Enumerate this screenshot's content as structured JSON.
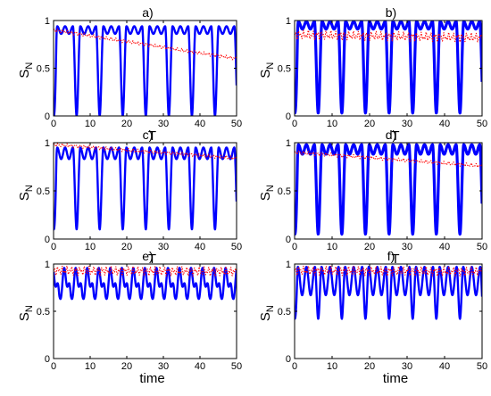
{
  "chart_data": [
    {
      "panel": "a)",
      "type": "line",
      "ylabel": "S_N",
      "xlabel": "T",
      "xlim": [
        0,
        50
      ],
      "ylim": [
        0,
        1
      ],
      "xticks": [
        0,
        10,
        20,
        30,
        40,
        50
      ],
      "yticks": [
        0,
        0.5,
        1
      ],
      "yticklabels": [
        "0",
        "0.5",
        "1"
      ],
      "series": [
        {
          "color": "#0000ff",
          "style": "solid",
          "shape": "single-dip",
          "period": 6.3,
          "max": 0.94,
          "min": 0.0,
          "notch": 0.08
        },
        {
          "color": "#ff0000",
          "style": "dotted",
          "shape": "slow-decay",
          "start": 0.9,
          "end": 0.6
        }
      ]
    },
    {
      "panel": "b)",
      "type": "line",
      "ylabel": "S_N",
      "xlabel": "T",
      "xlim": [
        0,
        50
      ],
      "ylim": [
        0,
        1
      ],
      "xticks": [
        0,
        10,
        20,
        30,
        40,
        50
      ],
      "yticks": [
        0,
        0.5,
        1
      ],
      "yticklabels": [
        "0",
        "0.5",
        "1"
      ],
      "series": [
        {
          "color": "#0000ff",
          "style": "solid",
          "shape": "thick-dip",
          "period": 6.3,
          "max": 0.99,
          "min": 0.03,
          "notch": 0.08
        },
        {
          "color": "#ff0000",
          "style": "dotted",
          "shape": "band",
          "start": 0.85,
          "end": 0.82
        }
      ]
    },
    {
      "panel": "c)",
      "type": "line",
      "ylabel": "S_N",
      "xlabel": "T",
      "xlim": [
        0,
        50
      ],
      "ylim": [
        0,
        1
      ],
      "xticks": [
        0,
        10,
        20,
        30,
        40,
        50
      ],
      "yticks": [
        0,
        0.5,
        1
      ],
      "yticklabels": [
        "0",
        "0.5",
        "1"
      ],
      "series": [
        {
          "color": "#0000ff",
          "style": "solid",
          "shape": "single-dip",
          "period": 6.3,
          "max": 0.95,
          "min": 0.1,
          "notch": 0.12
        },
        {
          "color": "#ff0000",
          "style": "dotted",
          "shape": "slow-decay",
          "start": 0.98,
          "end": 0.84
        }
      ]
    },
    {
      "panel": "d)",
      "type": "line",
      "ylabel": "S_N",
      "xlabel": "T",
      "xlim": [
        0,
        50
      ],
      "ylim": [
        0,
        1
      ],
      "xticks": [
        0,
        10,
        20,
        30,
        40,
        50
      ],
      "yticks": [
        0,
        0.5,
        1
      ],
      "yticklabels": [
        "0",
        "0.5",
        "1"
      ],
      "series": [
        {
          "color": "#0000ff",
          "style": "solid",
          "shape": "thick-dip",
          "period": 6.3,
          "max": 0.98,
          "min": 0.05,
          "notch": 0.1
        },
        {
          "color": "#ff0000",
          "style": "dotted",
          "shape": "slow-decay",
          "start": 0.9,
          "end": 0.76
        }
      ]
    },
    {
      "panel": "e)",
      "type": "line",
      "ylabel": "S_N",
      "xlabel": "time",
      "xlim": [
        0,
        50
      ],
      "ylim": [
        0,
        1
      ],
      "xticks": [
        0,
        10,
        20,
        30,
        40,
        50
      ],
      "yticks": [
        0,
        0.5,
        1
      ],
      "yticklabels": [
        "0",
        "0.5",
        "1"
      ],
      "series": [
        {
          "color": "#0000ff",
          "style": "solid",
          "shape": "fast-osc",
          "period": 3.15,
          "max": 0.97,
          "min": 0.55
        },
        {
          "color": "#ff0000",
          "style": "dotted",
          "shape": "band",
          "start": 0.93,
          "end": 0.92
        }
      ]
    },
    {
      "panel": "f)",
      "type": "line",
      "ylabel": "S_N",
      "xlabel": "time",
      "xlim": [
        0,
        50
      ],
      "ylim": [
        0,
        1
      ],
      "xticks": [
        0,
        10,
        20,
        30,
        40,
        50
      ],
      "yticks": [
        0,
        0.5,
        1
      ],
      "yticklabels": [
        "0",
        "0.5",
        "1"
      ],
      "series": [
        {
          "color": "#0000ff",
          "style": "solid",
          "shape": "dip-osc",
          "period": 6.3,
          "max": 0.97,
          "min": 0.42
        },
        {
          "color": "#ff0000",
          "style": "dotted",
          "shape": "band",
          "start": 0.93,
          "end": 0.92
        }
      ]
    }
  ]
}
